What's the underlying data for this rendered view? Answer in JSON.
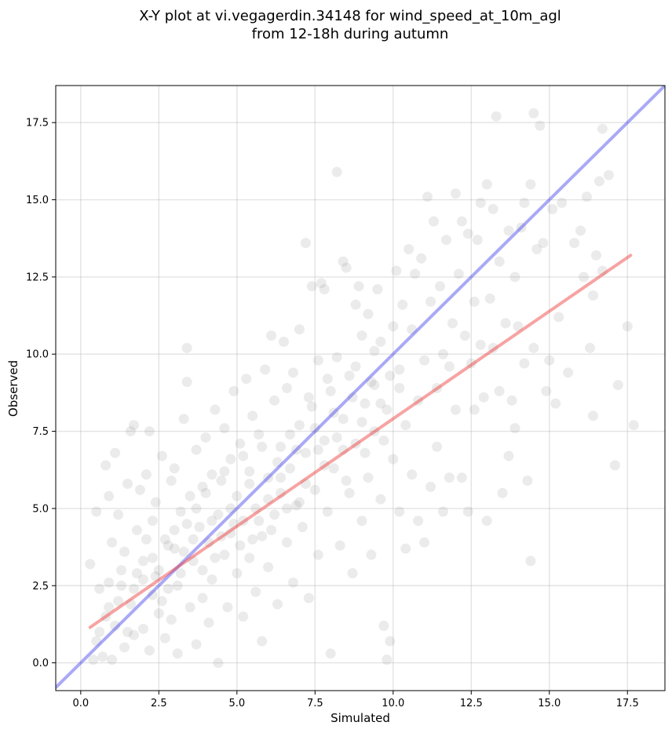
{
  "chart_data": {
    "type": "scatter",
    "title_line1": "X-Y plot at vi.vegagerdin.34148 for wind_speed_at_10m_agl",
    "title_line2": "from 12-18h during autumn",
    "xlabel": "Simulated",
    "ylabel": "Observed",
    "xlim": [
      -0.8,
      18.7
    ],
    "ylim": [
      -0.9,
      18.7
    ],
    "xticks": [
      0.0,
      2.5,
      5.0,
      7.5,
      10.0,
      12.5,
      15.0,
      17.5
    ],
    "xtick_labels": [
      "0.0",
      "2.5",
      "5.0",
      "7.5",
      "10.0",
      "12.5",
      "15.0",
      "17.5"
    ],
    "yticks": [
      0.0,
      2.5,
      5.0,
      7.5,
      10.0,
      12.5,
      15.0,
      17.5
    ],
    "ytick_labels": [
      "0.0",
      "2.5",
      "5.0",
      "7.5",
      "10.0",
      "12.5",
      "15.0",
      "17.5"
    ],
    "grid": true,
    "colors": {
      "points": "#808080",
      "identity_line": "#4040ee",
      "fit_line": "#ee3333"
    },
    "identity_line": {
      "x": [
        -0.8,
        18.7
      ],
      "y": [
        -0.8,
        18.7
      ]
    },
    "fit_line": {
      "x": [
        0.3,
        17.6
      ],
      "y": [
        1.15,
        13.2
      ]
    },
    "series": [
      {
        "points": [
          [
            0.3,
            3.2
          ],
          [
            0.4,
            0.1
          ],
          [
            0.5,
            0.7
          ],
          [
            0.5,
            4.9
          ],
          [
            0.6,
            2.4
          ],
          [
            0.7,
            0.2
          ],
          [
            0.8,
            6.4
          ],
          [
            0.8,
            1.5
          ],
          [
            0.9,
            2.6
          ],
          [
            0.9,
            5.4
          ],
          [
            1.0,
            3.9
          ],
          [
            1.0,
            0.1
          ],
          [
            1.1,
            6.8
          ],
          [
            1.1,
            1.2
          ],
          [
            1.2,
            4.8
          ],
          [
            1.3,
            2.5
          ],
          [
            1.4,
            0.5
          ],
          [
            1.4,
            3.6
          ],
          [
            1.5,
            5.8
          ],
          [
            1.6,
            7.5
          ],
          [
            1.6,
            1.9
          ],
          [
            1.7,
            0.9
          ],
          [
            1.7,
            7.7
          ],
          [
            1.8,
            4.3
          ],
          [
            1.8,
            2.9
          ],
          [
            1.9,
            5.6
          ],
          [
            2.0,
            1.1
          ],
          [
            2.0,
            3.3
          ],
          [
            2.1,
            6.1
          ],
          [
            2.2,
            7.5
          ],
          [
            2.2,
            0.4
          ],
          [
            2.3,
            2.2
          ],
          [
            2.3,
            4.6
          ],
          [
            2.4,
            5.2
          ],
          [
            2.5,
            1.6
          ],
          [
            2.5,
            3.0
          ],
          [
            2.6,
            6.7
          ],
          [
            2.7,
            0.8
          ],
          [
            2.7,
            4.0
          ],
          [
            2.8,
            2.4
          ],
          [
            2.9,
            5.9
          ],
          [
            2.9,
            1.4
          ],
          [
            3.0,
            3.7
          ],
          [
            3.0,
            6.3
          ],
          [
            3.1,
            0.3
          ],
          [
            3.2,
            4.9
          ],
          [
            3.2,
            2.9
          ],
          [
            3.3,
            7.9
          ],
          [
            3.4,
            10.2
          ],
          [
            3.4,
            9.1
          ],
          [
            3.5,
            1.8
          ],
          [
            3.5,
            5.4
          ],
          [
            3.6,
            3.3
          ],
          [
            3.7,
            6.9
          ],
          [
            3.7,
            0.6
          ],
          [
            3.8,
            4.4
          ],
          [
            3.9,
            2.1
          ],
          [
            3.9,
            5.7
          ],
          [
            4.0,
            7.3
          ],
          [
            4.1,
            3.9
          ],
          [
            4.1,
            1.3
          ],
          [
            4.2,
            6.1
          ],
          [
            4.2,
            2.7
          ],
          [
            4.3,
            8.2
          ],
          [
            4.4,
            4.8
          ],
          [
            4.4,
            0.0
          ],
          [
            4.5,
            5.9
          ],
          [
            4.6,
            3.5
          ],
          [
            4.6,
            7.6
          ],
          [
            4.7,
            1.8
          ],
          [
            4.8,
            6.6
          ],
          [
            4.8,
            4.2
          ],
          [
            4.9,
            8.8
          ],
          [
            5.0,
            2.9
          ],
          [
            5.0,
            5.4
          ],
          [
            5.1,
            7.1
          ],
          [
            5.2,
            1.5
          ],
          [
            5.2,
            4.6
          ],
          [
            5.3,
            9.2
          ],
          [
            5.4,
            6.2
          ],
          [
            5.4,
            3.4
          ],
          [
            5.5,
            8.0
          ],
          [
            5.6,
            5.0
          ],
          [
            5.6,
            2.3
          ],
          [
            5.7,
            7.4
          ],
          [
            5.8,
            0.7
          ],
          [
            5.8,
            4.1
          ],
          [
            5.9,
            9.5
          ],
          [
            6.0,
            6.0
          ],
          [
            6.0,
            3.1
          ],
          [
            6.1,
            10.6
          ],
          [
            6.2,
            8.5
          ],
          [
            6.2,
            4.8
          ],
          [
            6.3,
            1.9
          ],
          [
            6.4,
            7.0
          ],
          [
            6.4,
            5.5
          ],
          [
            6.5,
            10.4
          ],
          [
            6.6,
            3.9
          ],
          [
            6.6,
            8.9
          ],
          [
            6.7,
            6.3
          ],
          [
            6.8,
            2.6
          ],
          [
            6.8,
            9.4
          ],
          [
            6.9,
            5.1
          ],
          [
            7.0,
            7.7
          ],
          [
            7.0,
            10.8
          ],
          [
            7.1,
            4.4
          ],
          [
            7.2,
            13.6
          ],
          [
            7.2,
            6.8
          ],
          [
            7.3,
            2.1
          ],
          [
            7.4,
            8.3
          ],
          [
            7.4,
            12.2
          ],
          [
            7.5,
            5.6
          ],
          [
            7.6,
            9.8
          ],
          [
            7.6,
            3.5
          ],
          [
            7.7,
            12.3
          ],
          [
            7.8,
            7.2
          ],
          [
            7.8,
            12.1
          ],
          [
            7.9,
            4.9
          ],
          [
            8.0,
            8.8
          ],
          [
            8.0,
            0.3
          ],
          [
            8.1,
            6.3
          ],
          [
            8.2,
            9.9
          ],
          [
            8.2,
            15.9
          ],
          [
            8.3,
            3.8
          ],
          [
            8.4,
            7.9
          ],
          [
            8.4,
            13.0
          ],
          [
            8.5,
            12.8
          ],
          [
            8.6,
            5.5
          ],
          [
            8.6,
            9.3
          ],
          [
            8.7,
            2.9
          ],
          [
            8.8,
            11.6
          ],
          [
            8.8,
            7.1
          ],
          [
            8.9,
            12.2
          ],
          [
            9.0,
            4.6
          ],
          [
            9.0,
            10.6
          ],
          [
            9.1,
            8.4
          ],
          [
            9.2,
            6.0
          ],
          [
            9.2,
            11.3
          ],
          [
            9.3,
            3.5
          ],
          [
            9.4,
            9.0
          ],
          [
            9.4,
            7.5
          ],
          [
            9.5,
            12.1
          ],
          [
            9.6,
            5.3
          ],
          [
            9.6,
            10.4
          ],
          [
            9.7,
            1.2
          ],
          [
            9.8,
            8.2
          ],
          [
            9.8,
            0.1
          ],
          [
            9.9,
            0.7
          ],
          [
            10.0,
            6.6
          ],
          [
            10.0,
            10.9
          ],
          [
            10.1,
            12.7
          ],
          [
            10.2,
            4.9
          ],
          [
            10.2,
            9.5
          ],
          [
            10.3,
            11.6
          ],
          [
            10.4,
            3.7
          ],
          [
            10.4,
            7.7
          ],
          [
            10.5,
            13.4
          ],
          [
            10.6,
            10.8
          ],
          [
            10.6,
            6.1
          ],
          [
            10.7,
            12.6
          ],
          [
            10.8,
            8.5
          ],
          [
            10.8,
            4.6
          ],
          [
            10.9,
            13.1
          ],
          [
            11.0,
            9.8
          ],
          [
            11.0,
            3.9
          ],
          [
            11.1,
            15.1
          ],
          [
            11.2,
            11.7
          ],
          [
            11.2,
            5.7
          ],
          [
            11.3,
            14.3
          ],
          [
            11.4,
            8.9
          ],
          [
            11.4,
            7.0
          ],
          [
            11.5,
            12.2
          ],
          [
            11.6,
            10.0
          ],
          [
            11.6,
            4.9
          ],
          [
            11.7,
            13.7
          ],
          [
            11.8,
            9.6
          ],
          [
            11.8,
            6.0
          ],
          [
            11.9,
            11.0
          ],
          [
            12.0,
            15.2
          ],
          [
            12.0,
            8.2
          ],
          [
            12.1,
            12.6
          ],
          [
            12.2,
            14.3
          ],
          [
            12.2,
            6.0
          ],
          [
            12.3,
            10.6
          ],
          [
            12.4,
            13.9
          ],
          [
            12.4,
            4.9
          ],
          [
            12.5,
            9.7
          ],
          [
            12.6,
            11.7
          ],
          [
            12.6,
            8.2
          ],
          [
            12.7,
            13.7
          ],
          [
            12.8,
            10.3
          ],
          [
            12.8,
            14.9
          ],
          [
            12.9,
            8.6
          ],
          [
            13.0,
            15.5
          ],
          [
            13.0,
            4.6
          ],
          [
            13.1,
            11.8
          ],
          [
            13.2,
            14.7
          ],
          [
            13.2,
            10.2
          ],
          [
            13.3,
            17.7
          ],
          [
            13.4,
            13.0
          ],
          [
            13.4,
            8.8
          ],
          [
            13.5,
            5.5
          ],
          [
            13.6,
            11.0
          ],
          [
            13.7,
            14.0
          ],
          [
            13.7,
            6.7
          ],
          [
            13.8,
            8.5
          ],
          [
            13.9,
            12.5
          ],
          [
            13.9,
            7.6
          ],
          [
            14.0,
            10.9
          ],
          [
            14.1,
            14.1
          ],
          [
            14.2,
            9.7
          ],
          [
            14.2,
            14.9
          ],
          [
            14.3,
            5.9
          ],
          [
            14.4,
            3.3
          ],
          [
            14.4,
            15.5
          ],
          [
            14.5,
            10.2
          ],
          [
            14.5,
            17.8
          ],
          [
            14.6,
            13.4
          ],
          [
            14.7,
            17.4
          ],
          [
            14.8,
            13.6
          ],
          [
            14.9,
            8.8
          ],
          [
            15.0,
            9.8
          ],
          [
            15.1,
            14.7
          ],
          [
            15.2,
            8.4
          ],
          [
            15.3,
            11.2
          ],
          [
            15.4,
            14.9
          ],
          [
            15.6,
            9.4
          ],
          [
            15.8,
            13.6
          ],
          [
            16.0,
            14.0
          ],
          [
            16.1,
            12.5
          ],
          [
            16.2,
            15.1
          ],
          [
            16.3,
            10.2
          ],
          [
            16.4,
            8.0
          ],
          [
            16.4,
            11.9
          ],
          [
            16.5,
            13.2
          ],
          [
            16.6,
            15.6
          ],
          [
            16.7,
            12.7
          ],
          [
            16.7,
            17.3
          ],
          [
            16.9,
            15.8
          ],
          [
            17.1,
            6.4
          ],
          [
            17.2,
            9.0
          ],
          [
            17.5,
            10.9
          ],
          [
            17.7,
            7.7
          ],
          [
            1.2,
            2.0
          ],
          [
            1.5,
            1.0
          ],
          [
            2.0,
            2.7
          ],
          [
            2.3,
            3.4
          ],
          [
            2.6,
            2.0
          ],
          [
            3.0,
            4.3
          ],
          [
            3.3,
            3.6
          ],
          [
            3.6,
            4.0
          ],
          [
            3.9,
            3.0
          ],
          [
            4.2,
            4.6
          ],
          [
            4.5,
            4.1
          ],
          [
            4.8,
            5.0
          ],
          [
            5.1,
            3.8
          ],
          [
            5.4,
            5.8
          ],
          [
            5.7,
            4.6
          ],
          [
            6.0,
            5.3
          ],
          [
            6.3,
            6.5
          ],
          [
            6.6,
            5.0
          ],
          [
            6.9,
            6.9
          ],
          [
            7.2,
            5.8
          ],
          [
            7.5,
            7.6
          ],
          [
            7.8,
            6.4
          ],
          [
            8.1,
            8.1
          ],
          [
            8.4,
            6.9
          ],
          [
            8.7,
            8.6
          ],
          [
            9.0,
            7.8
          ],
          [
            9.3,
            9.1
          ],
          [
            9.6,
            8.4
          ],
          [
            9.9,
            9.3
          ],
          [
            10.2,
            8.9
          ],
          [
            0.6,
            1.0
          ],
          [
            0.9,
            1.8
          ],
          [
            1.3,
            3.0
          ],
          [
            1.7,
            2.4
          ],
          [
            2.1,
            4.0
          ],
          [
            2.4,
            2.8
          ],
          [
            2.8,
            3.8
          ],
          [
            3.1,
            2.5
          ],
          [
            3.4,
            4.5
          ],
          [
            3.7,
            5.0
          ],
          [
            4.0,
            5.5
          ],
          [
            4.3,
            3.4
          ],
          [
            4.6,
            6.2
          ],
          [
            4.9,
            4.5
          ],
          [
            5.2,
            6.7
          ],
          [
            5.5,
            4.0
          ],
          [
            5.8,
            7.0
          ],
          [
            6.1,
            4.3
          ],
          [
            6.4,
            6.0
          ],
          [
            6.7,
            7.4
          ],
          [
            7.0,
            5.2
          ],
          [
            7.3,
            8.6
          ],
          [
            7.6,
            6.9
          ],
          [
            7.9,
            9.2
          ],
          [
            8.2,
            7.3
          ],
          [
            8.5,
            5.9
          ],
          [
            8.8,
            9.6
          ],
          [
            9.1,
            6.8
          ],
          [
            9.4,
            10.1
          ],
          [
            9.7,
            7.2
          ]
        ]
      }
    ]
  }
}
